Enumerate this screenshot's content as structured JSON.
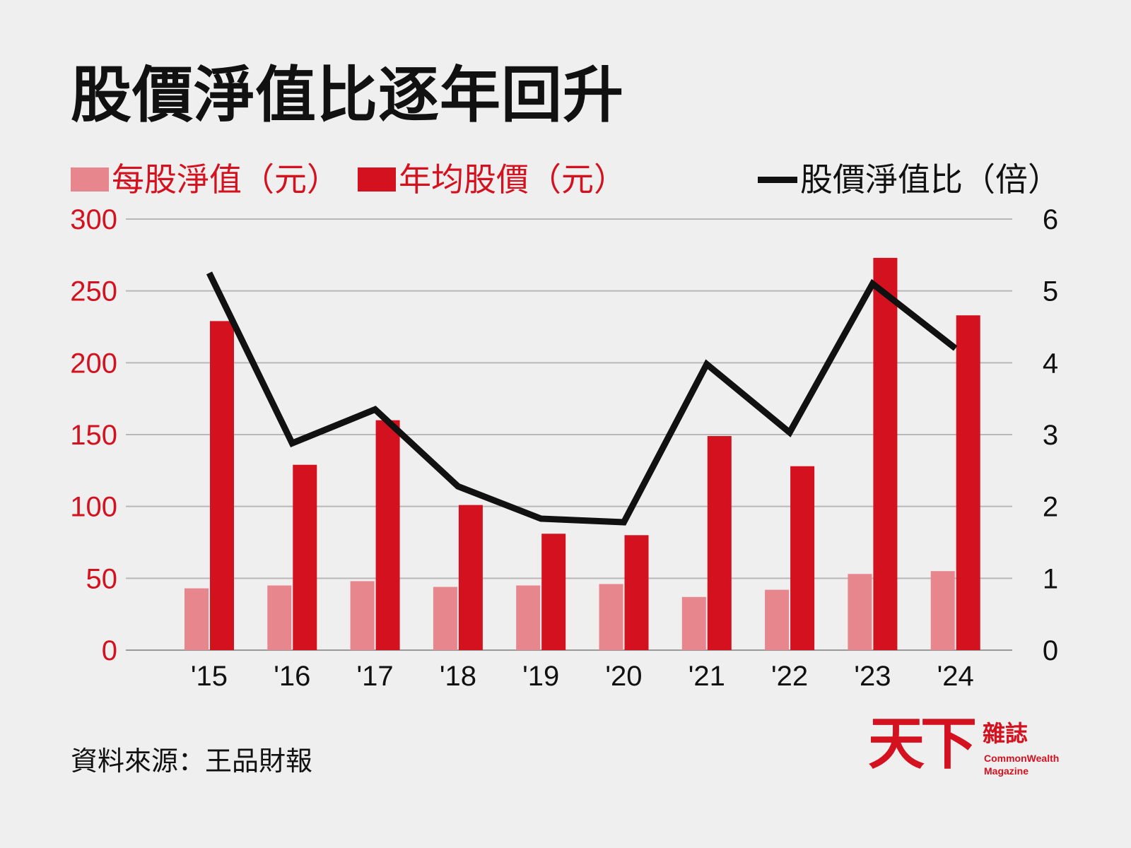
{
  "title": "股價淨值比逐年回升",
  "source": "資料來源：王品財報",
  "logo": {
    "chinese_big": "天下",
    "chinese_small": "雜誌",
    "english_line1": "CommonWealth",
    "english_line2": "Magazine"
  },
  "colors": {
    "background": "#efefef",
    "light_bar": "#e8868d",
    "dark_bar": "#d4111e",
    "line": "#111111",
    "grid": "#b8b8b8"
  },
  "chart_data": {
    "type": "bar",
    "title": "股價淨值比逐年回升",
    "categories": [
      "'15",
      "'16",
      "'17",
      "'18",
      "'19",
      "'20",
      "'21",
      "'22",
      "'23",
      "'24"
    ],
    "series": [
      {
        "name": "每股淨值（元）",
        "type": "bar",
        "axis": "left",
        "values": [
          43,
          45,
          48,
          44,
          45,
          46,
          37,
          42,
          53,
          55
        ]
      },
      {
        "name": "年均股價（元）",
        "type": "bar",
        "axis": "left",
        "values": [
          229,
          129,
          160,
          101,
          81,
          80,
          149,
          128,
          273,
          233
        ]
      },
      {
        "name": "股價淨值比（倍）",
        "type": "line",
        "axis": "right",
        "values": [
          5.25,
          2.88,
          3.35,
          2.28,
          1.83,
          1.78,
          3.98,
          3.03,
          5.1,
          4.2
        ]
      }
    ],
    "y_left": {
      "ylim": [
        0,
        300
      ],
      "ticks": [
        "0",
        "50",
        "100",
        "150",
        "200",
        "250",
        "300"
      ]
    },
    "y_right": {
      "ylim": [
        0,
        6
      ],
      "ticks": [
        "0",
        "1",
        "2",
        "3",
        "4",
        "5",
        "6"
      ]
    },
    "grid": true,
    "legend": "top"
  }
}
